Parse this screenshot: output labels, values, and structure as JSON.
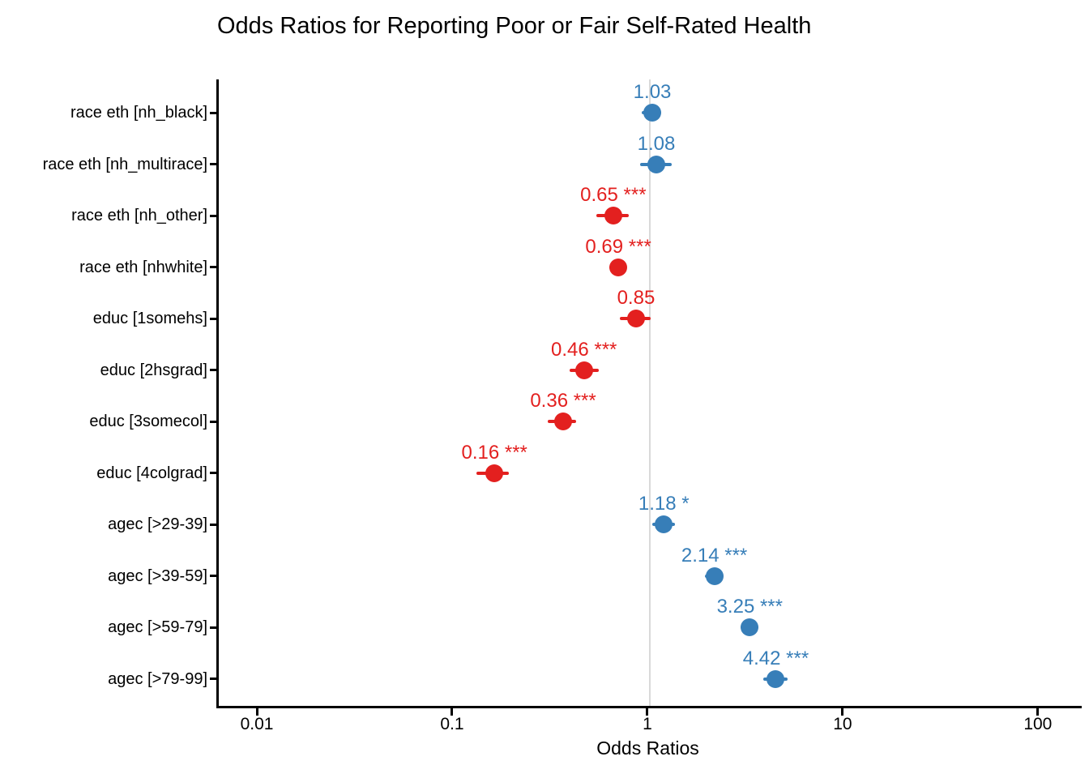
{
  "title": "Odds Ratios for Reporting Poor or Fair Self-Rated Health",
  "colors": {
    "positive": "#377EB8",
    "negative": "#E3201F",
    "reference_line": "#D9D9D9",
    "axis": "#000000",
    "text": "#000000"
  },
  "chart_data": {
    "type": "scatter",
    "variant": "forest-plot-odds-ratios",
    "title": "Odds Ratios for Reporting Poor or Fair Self-Rated Health",
    "xlabel": "Odds Ratios",
    "ylabel": "",
    "x_scale": "log10",
    "xlim": [
      0.0062,
      163
    ],
    "x_ticks": [
      0.01,
      0.1,
      1,
      10,
      100
    ],
    "x_tick_labels": [
      "0.01",
      "0.1",
      "1",
      "10",
      "100"
    ],
    "reference_line_x": 1,
    "grid": "off",
    "legend": "none",
    "color_rule": "blue = OR > 1, red = OR < 1",
    "points": [
      {
        "label": "race eth [nh_black]",
        "estimate": 1.03,
        "estimate_label": "1.03",
        "significance": "",
        "ci_low": 0.91,
        "ci_high": 1.14,
        "direction": "positive"
      },
      {
        "label": "race eth [nh_multirace]",
        "estimate": 1.08,
        "estimate_label": "1.08",
        "significance": "",
        "ci_low": 0.89,
        "ci_high": 1.3,
        "direction": "positive"
      },
      {
        "label": "race eth [nh_other]",
        "estimate": 0.65,
        "estimate_label": "0.65",
        "significance": "***",
        "ci_low": 0.53,
        "ci_high": 0.78,
        "direction": "negative"
      },
      {
        "label": "race eth [nhwhite]",
        "estimate": 0.69,
        "estimate_label": "0.69",
        "significance": "***",
        "ci_low": 0.62,
        "ci_high": 0.75,
        "direction": "negative"
      },
      {
        "label": "educ [1somehs]",
        "estimate": 0.85,
        "estimate_label": "0.85",
        "significance": "",
        "ci_low": 0.7,
        "ci_high": 1.01,
        "direction": "negative"
      },
      {
        "label": "educ [2hsgrad]",
        "estimate": 0.46,
        "estimate_label": "0.46",
        "significance": "***",
        "ci_low": 0.39,
        "ci_high": 0.55,
        "direction": "negative"
      },
      {
        "label": "educ [3somecol]",
        "estimate": 0.36,
        "estimate_label": "0.36",
        "significance": "***",
        "ci_low": 0.3,
        "ci_high": 0.42,
        "direction": "negative"
      },
      {
        "label": "educ [4colgrad]",
        "estimate": 0.16,
        "estimate_label": "0.16",
        "significance": "***",
        "ci_low": 0.13,
        "ci_high": 0.19,
        "direction": "negative"
      },
      {
        "label": "agec [>29-39]",
        "estimate": 1.18,
        "estimate_label": "1.18",
        "significance": "*",
        "ci_low": 1.03,
        "ci_high": 1.35,
        "direction": "positive"
      },
      {
        "label": "agec [>39-59]",
        "estimate": 2.14,
        "estimate_label": "2.14",
        "significance": "***",
        "ci_low": 1.91,
        "ci_high": 2.35,
        "direction": "positive"
      },
      {
        "label": "agec [>59-79]",
        "estimate": 3.25,
        "estimate_label": "3.25",
        "significance": "***",
        "ci_low": 2.93,
        "ci_high": 3.61,
        "direction": "positive"
      },
      {
        "label": "agec [>79-99]",
        "estimate": 4.42,
        "estimate_label": "4.42",
        "significance": "***",
        "ci_low": 3.81,
        "ci_high": 5.09,
        "direction": "positive"
      }
    ]
  }
}
